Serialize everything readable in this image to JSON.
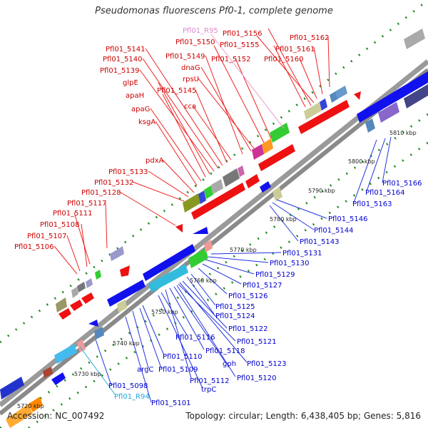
{
  "title": "Pseudomonas fluorescens Pf0-1, complete genome",
  "footer": {
    "accession": "Accession: NC_007492",
    "summary": "Topology: circular; Length: 6,438,405 bp; Genes: 5,816"
  },
  "colors": {
    "forward_label": "#cc0000",
    "reverse_label": "#0000cc",
    "rna_forward_label": "#dd88cc",
    "rna_reverse_label": "#22aadd",
    "backbone": "#8a8a8a",
    "tick_dots": "#228b22"
  },
  "kbp_ticks": [
    {
      "label": "5720 kbp"
    },
    {
      "label": "5730 kbp"
    },
    {
      "label": "5740 kbp"
    },
    {
      "label": "5750 kbp"
    },
    {
      "label": "5760 kbp"
    },
    {
      "label": "5770 kbp"
    },
    {
      "label": "5780 kbp"
    },
    {
      "label": "5790 kbp"
    },
    {
      "label": "5800 kbp"
    },
    {
      "label": "5810 kbp"
    }
  ],
  "forward_labels": [
    "Pfl01_5106",
    "Pfl01_5107",
    "Pfl01_5108",
    "Pfl01_5111",
    "Pfl01_5117",
    "Pfl01_5128",
    "Pfl01_5132",
    "Pfl01_5133",
    "pdxA",
    "ksgA",
    "apaG",
    "apaH",
    "glpE",
    "Pfl01_5139",
    "Pfl01_5140",
    "Pfl01_5141",
    "Pfl01_5145",
    "cca",
    "Pfl01_5149",
    "dnaG",
    "rpsU",
    "Pfl01_5150",
    "Pfl01_5152",
    "Pfl01_R95",
    "Pfl01_5155",
    "Pfl01_5156",
    "Pfl01_5160",
    "Pfl01_5161",
    "Pfl01_5162"
  ],
  "reverse_labels": [
    "Pfl01_5166",
    "Pfl01_5164",
    "Pfl01_5163",
    "Pfl01_5146",
    "Pfl01_5144",
    "Pfl01_5143",
    "Pfl01_5131",
    "Pfl01_5130",
    "Pfl01_5129",
    "Pfl01_5127",
    "Pfl01_5126",
    "Pfl01_5125",
    "Pfl01_5124",
    "Pfl01_5122",
    "Pfl01_5121",
    "Pfl01_5116",
    "Pfl01_5118",
    "Pfl01_5123",
    "Pfl01_5110",
    "Pfl01_5109",
    "gph",
    "Pfl01_5120",
    "argC",
    "Pfl01_5112",
    "Pfl01_5098",
    "trpC",
    "Pfl01_R94",
    "Pfl01_5101"
  ]
}
